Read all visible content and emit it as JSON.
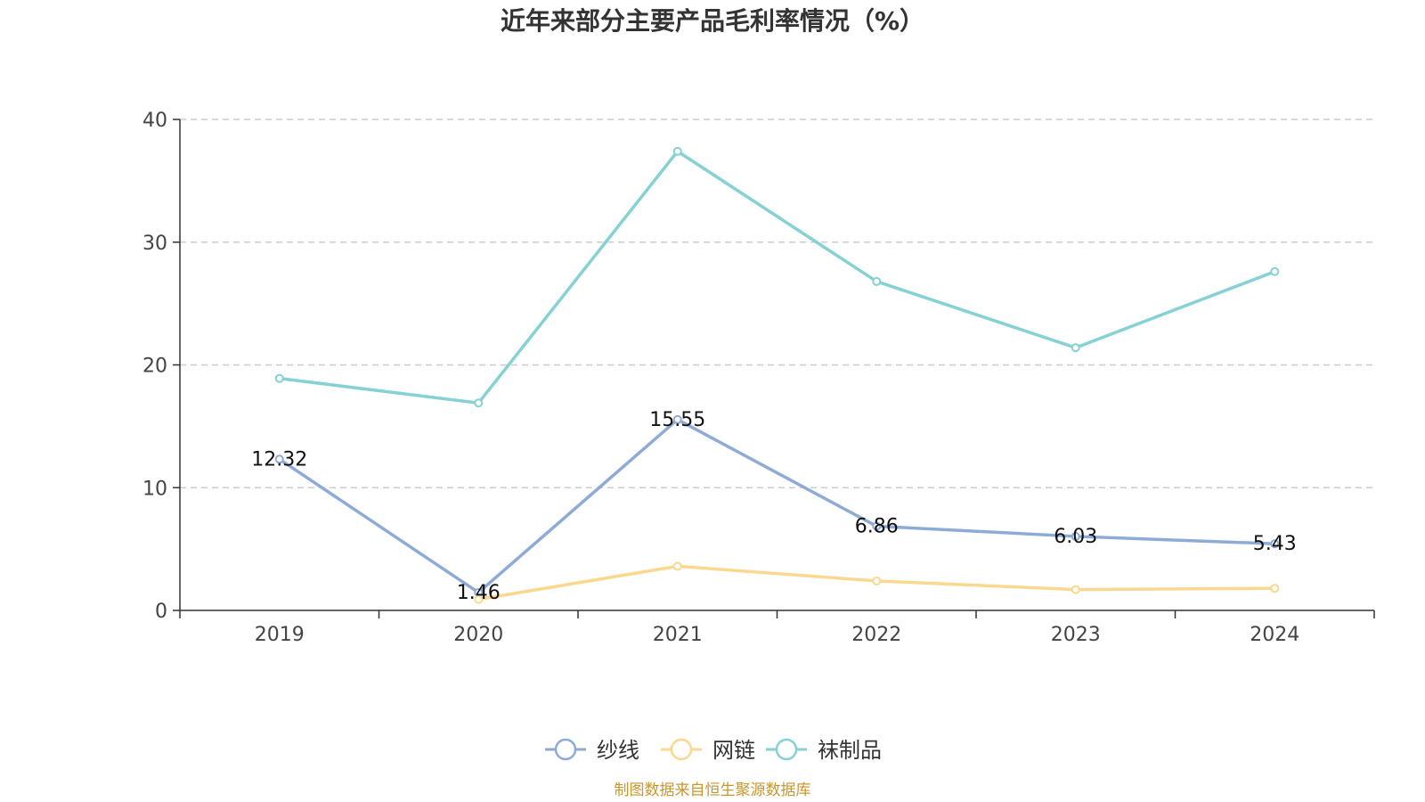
{
  "chart_data": {
    "type": "line",
    "title": "近年来部分主要产品毛利率情况（%）",
    "xlabel": "",
    "ylabel": "",
    "categories": [
      "2019",
      "2020",
      "2021",
      "2022",
      "2023",
      "2024"
    ],
    "ylim": [
      0,
      40
    ],
    "yticks": [
      "0",
      "10",
      "20",
      "30",
      "40"
    ],
    "grid": true,
    "legend": "bottom-center",
    "series": [
      {
        "name": "纱线",
        "color": "#8eabd8",
        "values": [
          12.32,
          1.46,
          15.55,
          6.86,
          6.03,
          5.43
        ],
        "labels": [
          "12.32",
          "1.46",
          "15.55",
          "6.86",
          "6.03",
          "5.43"
        ]
      },
      {
        "name": "网链",
        "color": "#fbd88f",
        "values": [
          null,
          0.9,
          3.6,
          2.4,
          1.7,
          1.8
        ],
        "labels": []
      },
      {
        "name": "袜制品",
        "color": "#85d1d4",
        "values": [
          18.9,
          16.9,
          37.4,
          26.8,
          21.4,
          27.6
        ],
        "labels": []
      }
    ]
  },
  "source_text": "制图数据来自恒生聚源数据库",
  "colors": {
    "axis": "#333333",
    "grid": "#cccccc",
    "source": "#c8962e"
  }
}
